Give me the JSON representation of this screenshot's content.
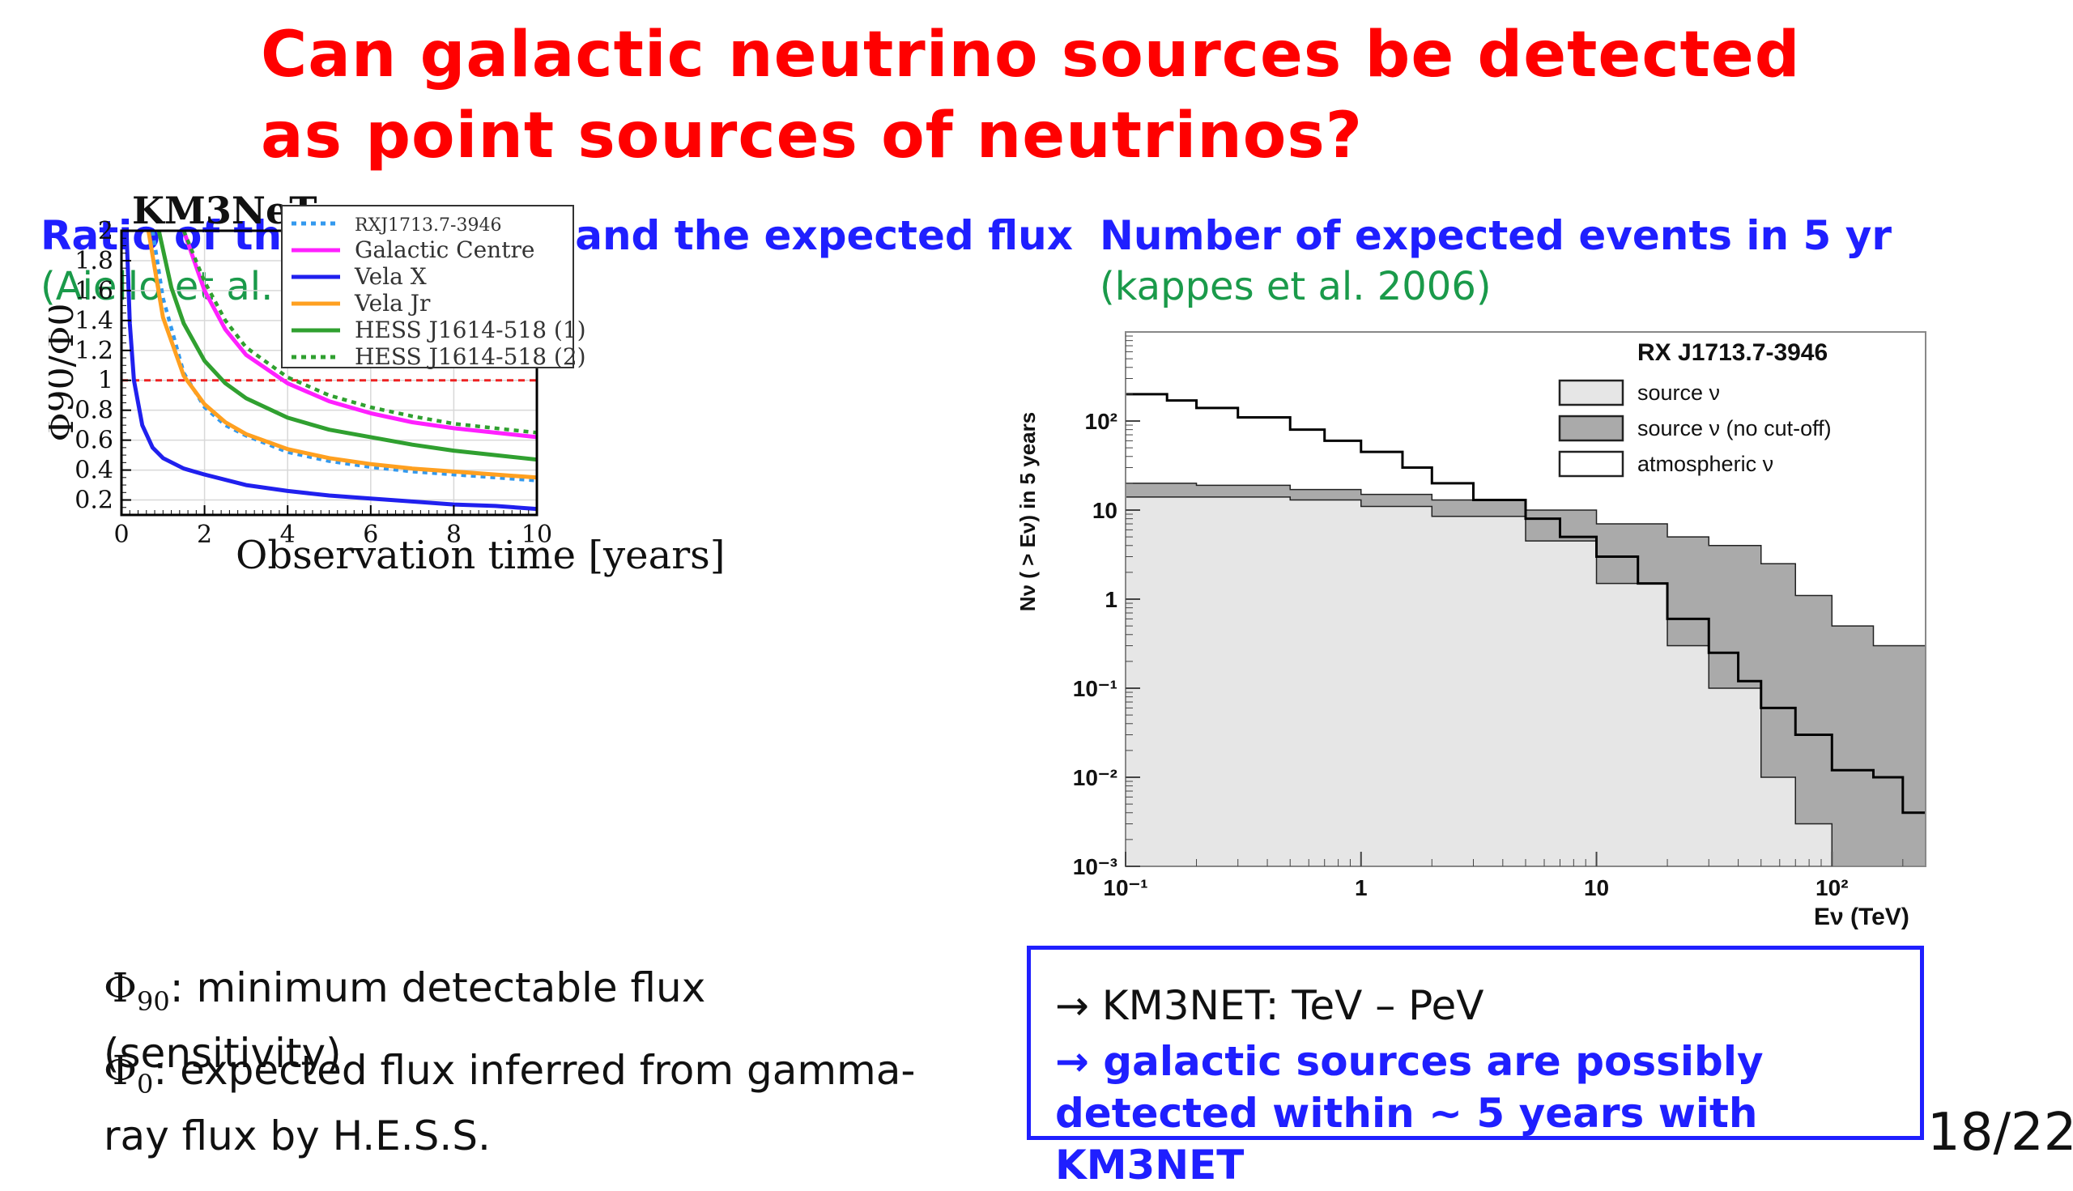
{
  "slide": {
    "title": "Can galactic neutrino sources be detected as point sources of neutrinos?",
    "page_number": "18/22",
    "left_heading": "Ratio of the sensitivity and the expected flux",
    "left_citation": "(Aiello et al. 2019)",
    "right_heading": "Number of expected events in 5 yr",
    "right_citation": "(kappes et al. 2006)",
    "def1": {
      "symbol": "Φ90",
      "text": ": minimum detectable flux (sensitivity)"
    },
    "def2": {
      "symbol": "Φ0",
      "text": ": expected flux inferred from gamma-ray flux by H.E.S.S."
    },
    "conclusion_line1": "→ KM3NET: TeV – PeV",
    "conclusion_line2": "→ galactic sources are possibly detected within ~ 5 years with KM3NET"
  },
  "colors": {
    "title": "#ff0000",
    "heading": "#1f1fff",
    "citation": "#1a9a4a",
    "vela_x": "#2020ee",
    "galactic_centre": "#ff20ff",
    "vela_jr": "#ffa020",
    "hess1": "#30a030",
    "rxj": "#3399ee",
    "threshold": "#ee2222",
    "source_fill": "#e6e6e6",
    "nocutoff_fill": "#aaaaaa"
  },
  "chart_data": [
    {
      "type": "line",
      "title": "KM3NeT",
      "xlabel": "Observation time [years]",
      "ylabel": "Φ90/Φ0",
      "xlim": [
        0,
        10
      ],
      "ylim": [
        0.1,
        2
      ],
      "xticks": [
        "0",
        "2",
        "4",
        "6",
        "8",
        "10"
      ],
      "yticks": [
        "0.2",
        "0.4",
        "0.6",
        "0.8",
        "1",
        "1.2",
        "1.4",
        "1.6",
        "1.8",
        "2"
      ],
      "grid": true,
      "legend_position": "top-right",
      "threshold": 1,
      "series": [
        {
          "name": "RXJ1713.7-3946",
          "style": "dotted",
          "color": "#3399ee",
          "x": [
            0.75,
            1,
            1.5,
            2,
            2.5,
            3,
            4,
            5,
            6,
            7,
            8,
            9,
            10
          ],
          "y": [
            2.0,
            1.55,
            1.05,
            0.82,
            0.7,
            0.63,
            0.52,
            0.46,
            0.42,
            0.39,
            0.37,
            0.35,
            0.33
          ]
        },
        {
          "name": "Galactic Centre",
          "style": "solid",
          "color": "#ff20ff",
          "x": [
            1.5,
            2,
            2.5,
            3,
            4,
            5,
            6,
            7,
            8,
            9,
            10
          ],
          "y": [
            2.0,
            1.6,
            1.34,
            1.17,
            0.98,
            0.86,
            0.78,
            0.72,
            0.68,
            0.65,
            0.62
          ]
        },
        {
          "name": "Vela X",
          "style": "solid",
          "color": "#2020ee",
          "x": [
            0.12,
            0.2,
            0.3,
            0.5,
            0.75,
            1,
            1.5,
            2,
            3,
            4,
            5,
            6,
            7,
            8,
            9,
            10
          ],
          "y": [
            2.0,
            1.38,
            1.0,
            0.7,
            0.55,
            0.48,
            0.41,
            0.37,
            0.3,
            0.26,
            0.23,
            0.21,
            0.19,
            0.17,
            0.16,
            0.14
          ]
        },
        {
          "name": "Vela Jr",
          "style": "solid",
          "color": "#ffa020",
          "x": [
            0.65,
            1,
            1.5,
            2,
            2.5,
            3,
            4,
            5,
            6,
            7,
            8,
            9,
            10
          ],
          "y": [
            2.0,
            1.42,
            1.03,
            0.84,
            0.72,
            0.64,
            0.54,
            0.48,
            0.44,
            0.41,
            0.39,
            0.37,
            0.35
          ]
        },
        {
          "name": "HESS J1614-518 (1)",
          "style": "solid",
          "color": "#30a030",
          "x": [
            0.9,
            1.2,
            1.5,
            2,
            2.5,
            3,
            4,
            5,
            6,
            7,
            8,
            9,
            10
          ],
          "y": [
            2.0,
            1.62,
            1.38,
            1.13,
            0.98,
            0.88,
            0.75,
            0.67,
            0.62,
            0.57,
            0.53,
            0.5,
            0.47
          ]
        },
        {
          "name": "HESS J1614-518 (2)",
          "style": "dotted",
          "color": "#30a030",
          "x": [
            1.5,
            2,
            2.5,
            3,
            4,
            5,
            6,
            7,
            8,
            9,
            10
          ],
          "y": [
            2.0,
            1.66,
            1.4,
            1.22,
            1.02,
            0.9,
            0.82,
            0.76,
            0.71,
            0.68,
            0.65
          ]
        }
      ]
    },
    {
      "type": "area",
      "title": "RX J1713.7-3946",
      "xlabel": "Eν (TeV)",
      "ylabel": "Nν ( > Eν) in 5 years",
      "xscale": "log",
      "yscale": "log",
      "xlim": [
        0.1,
        250
      ],
      "ylim": [
        0.001,
        1000
      ],
      "xticks": [
        "10⁻¹",
        "1",
        "10",
        "10²"
      ],
      "yticks": [
        "10⁻³",
        "10⁻²",
        "10⁻¹",
        "1",
        "10",
        "10²"
      ],
      "legend_position": "top-right",
      "series": [
        {
          "name": "source ν",
          "style": "filled-step",
          "color": "#e6e6e6",
          "x": [
            0.1,
            0.2,
            0.5,
            1,
            2,
            5,
            10,
            20,
            30,
            50,
            70,
            100,
            150,
            250
          ],
          "y": [
            14,
            14,
            13,
            11,
            8.5,
            4.5,
            1.5,
            0.3,
            0.1,
            0.01,
            0.003,
            0.001,
            0.001,
            0.001
          ]
        },
        {
          "name": "source ν (no cut-off)",
          "style": "filled-step",
          "color": "#aaaaaa",
          "x": [
            0.1,
            0.2,
            0.5,
            1,
            2,
            5,
            10,
            20,
            30,
            50,
            70,
            100,
            150,
            250
          ],
          "y": [
            20,
            19,
            17,
            15,
            13,
            10,
            7,
            5,
            4,
            2.5,
            1.1,
            0.5,
            0.3,
            0.03
          ]
        },
        {
          "name": "atmospheric ν",
          "style": "step",
          "color": "#000000",
          "x": [
            0.1,
            0.15,
            0.2,
            0.3,
            0.5,
            0.7,
            1,
            1.5,
            2,
            3,
            5,
            7,
            10,
            15,
            20,
            30,
            40,
            50,
            70,
            100,
            150,
            200,
            250
          ],
          "y": [
            200,
            170,
            140,
            110,
            80,
            60,
            45,
            30,
            20,
            13,
            8,
            5,
            3,
            1.5,
            0.6,
            0.25,
            0.12,
            0.06,
            0.03,
            0.012,
            0.01,
            0.004,
            0.004
          ]
        }
      ]
    }
  ]
}
